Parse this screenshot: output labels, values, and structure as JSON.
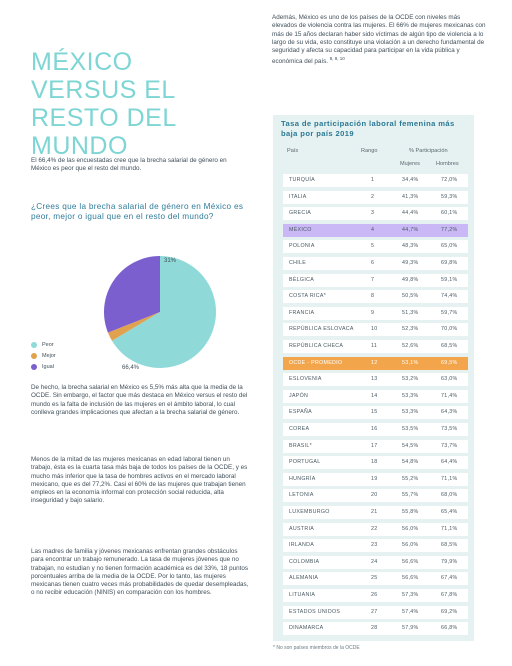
{
  "title": "MÉXICO VERSUS EL RESTO DEL MUNDO",
  "top_right_text": "Además, México es uno de los países de la OCDE con niveles más elevados de violencia contra las mujeres. El 66% de mujeres mexicanas con más de 15 años declaran haber sido víctimas de algún tipo de violencia a lo largo de su vida, esto constituye una violación a un derecho fundamental de seguridad y afecta su capacidad para participar en la vida pública y económica del país.",
  "top_right_refs": "8, 9, 10",
  "intro": "El 66,4% de las encuestadas cree que la brecha salarial de género en México es peor que el resto del mundo.",
  "question": "¿Crees que la brecha salarial de género en México es peor, mejor o igual que en el resto del mundo?",
  "pie": {
    "slices": [
      {
        "label": "Peor",
        "value": 66.4,
        "color": "#8fd9d8"
      },
      {
        "label": "Mejor",
        "value": 2.6,
        "color": "#e0a24e"
      },
      {
        "label": "Igual",
        "value": 31,
        "color": "#7b5fcf"
      }
    ],
    "label_peor": "66,4%",
    "label_igual": "31%"
  },
  "p1": "De hecho, la brecha salarial en México es 5,5% más alta que la media de la OCDE. Sin embargo, el factor que más destaca en México versus el resto del mundo es la falta de inclusión de las mujeres en el ámbito laboral, lo cual conlleva grandes implicaciones que afectan a la brecha salarial de género.",
  "p2": "Menos de la mitad de las mujeres mexicanas en edad laboral tienen un trabajo, ésta es la cuarta tasa más baja de todos los países de la OCDE, y es mucho más inferior que la tasa de hombres activos en el mercado laboral mexicano, que es del 77,2%. Casi el 60% de las mujeres que trabajan tienen empleos en la economía informal con protección social reducida, alta inseguridad y bajo salario.",
  "p3": "Las madres de familia y jóvenes mexicanas enfrentan grandes obstáculos para encontrar un trabajo remunerado. La tasa de mujeres jóvenes que no trabajan, no estudian y no tienen formación académica es del 33%, 18 puntos porcentuales arriba de la media de la OCDE. Por lo tanto, las mujeres mexicanas tienen cuatro veces más probabilidades de quedar desempleadas, o no recibir educación (NINIS) en comparación con los hombres.",
  "table": {
    "title": "Tasa de participación laboral femenina más baja por país 2019",
    "headers": {
      "pais": "País",
      "rango": "Rango",
      "participacion": "% Participación",
      "mujeres": "Mujeres",
      "hombres": "Hombres"
    },
    "rows": [
      {
        "pais": "TURQUÍA",
        "rango": "1",
        "mujeres": "34,4%",
        "hombres": "72,0%"
      },
      {
        "pais": "ITALIA",
        "rango": "2",
        "mujeres": "41,3%",
        "hombres": "59,3%"
      },
      {
        "pais": "GRECIA",
        "rango": "3",
        "mujeres": "44,4%",
        "hombres": "60,1%"
      },
      {
        "pais": "MÉXICO",
        "rango": "4",
        "mujeres": "44,7%",
        "hombres": "77,2%",
        "highlight": "purple"
      },
      {
        "pais": "POLONIA",
        "rango": "5",
        "mujeres": "48,3%",
        "hombres": "65,0%"
      },
      {
        "pais": "CHILE",
        "rango": "6",
        "mujeres": "49,3%",
        "hombres": "69,8%"
      },
      {
        "pais": "BÉLGICA",
        "rango": "7",
        "mujeres": "49,8%",
        "hombres": "59,1%"
      },
      {
        "pais": "COSTA RICA*",
        "rango": "8",
        "mujeres": "50,5%",
        "hombres": "74,4%"
      },
      {
        "pais": "FRANCIA",
        "rango": "9",
        "mujeres": "51,3%",
        "hombres": "59,7%"
      },
      {
        "pais": "REPÚBLICA ESLOVACA",
        "rango": "10",
        "mujeres": "52,3%",
        "hombres": "70,0%"
      },
      {
        "pais": "REPÚBLICA CHECA",
        "rango": "11",
        "mujeres": "52,6%",
        "hombres": "68,5%"
      },
      {
        "pais": "OCDE - PROMEDIO",
        "rango": "12",
        "mujeres": "53,1%",
        "hombres": "69,5%",
        "highlight": "orange"
      },
      {
        "pais": "ESLOVENIA",
        "rango": "13",
        "mujeres": "53,2%",
        "hombres": "63,0%"
      },
      {
        "pais": "JAPÓN",
        "rango": "14",
        "mujeres": "53,3%",
        "hombres": "71,4%"
      },
      {
        "pais": "ESPAÑA",
        "rango": "15",
        "mujeres": "53,3%",
        "hombres": "64,3%"
      },
      {
        "pais": "COREA",
        "rango": "16",
        "mujeres": "53,5%",
        "hombres": "73,5%"
      },
      {
        "pais": "BRASIL*",
        "rango": "17",
        "mujeres": "54,5%",
        "hombres": "73,7%"
      },
      {
        "pais": "PORTUGAL",
        "rango": "18",
        "mujeres": "54,8%",
        "hombres": "64,4%"
      },
      {
        "pais": "HUNGRÍA",
        "rango": "19",
        "mujeres": "55,2%",
        "hombres": "71,1%"
      },
      {
        "pais": "LETONIA",
        "rango": "20",
        "mujeres": "55,7%",
        "hombres": "68,0%"
      },
      {
        "pais": "LUXEMBURGO",
        "rango": "21",
        "mujeres": "55,8%",
        "hombres": "65,4%"
      },
      {
        "pais": "AUSTRIA",
        "rango": "22",
        "mujeres": "56,0%",
        "hombres": "71,1%"
      },
      {
        "pais": "IRLANDA",
        "rango": "23",
        "mujeres": "56,0%",
        "hombres": "68,5%"
      },
      {
        "pais": "COLOMBIA",
        "rango": "24",
        "mujeres": "56,6%",
        "hombres": "79,9%"
      },
      {
        "pais": "ALEMANIA",
        "rango": "25",
        "mujeres": "56,6%",
        "hombres": "67,4%"
      },
      {
        "pais": "LITUANIA",
        "rango": "26",
        "mujeres": "57,3%",
        "hombres": "67,8%"
      },
      {
        "pais": "ESTADOS UNIDOS",
        "rango": "27",
        "mujeres": "57,4%",
        "hombres": "69,2%"
      },
      {
        "pais": "DINAMARCA",
        "rango": "28",
        "mujeres": "57,9%",
        "hombres": "66,8%"
      }
    ]
  },
  "footnote": "* No son países miembros de la OCDE",
  "colors": {
    "accent": "#7dd5d4",
    "question": "#2f7c9b",
    "mexico_row": "#c9b8f5",
    "ocde_row": "#f2a54a",
    "table_bg": "#e6f2f2"
  }
}
